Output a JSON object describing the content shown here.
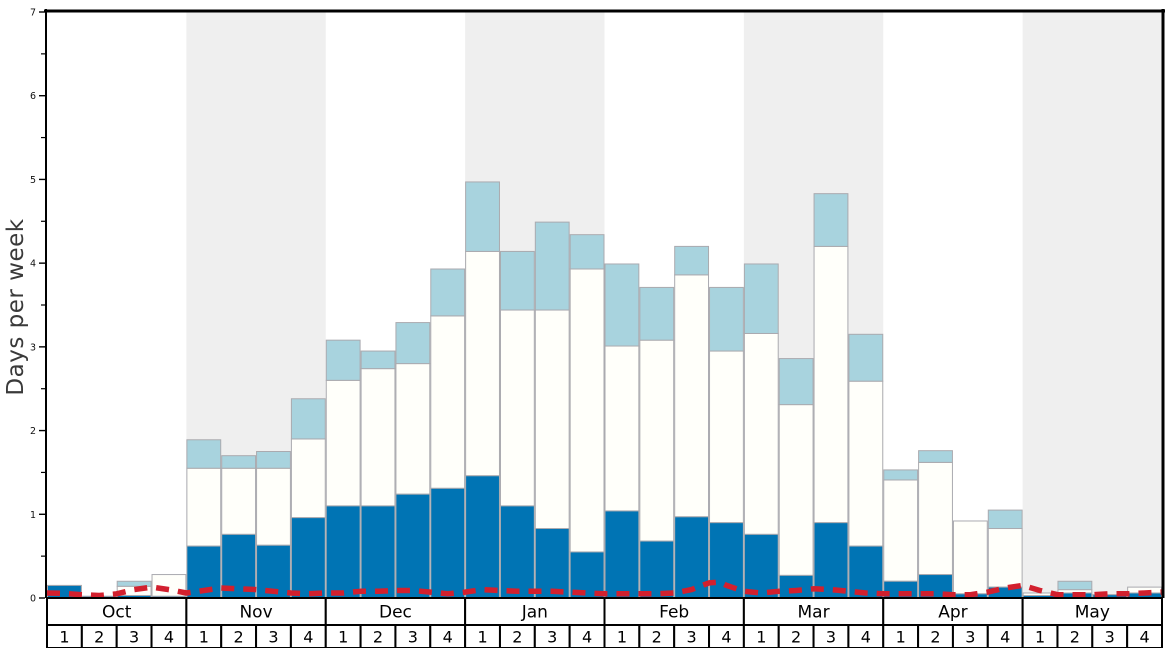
{
  "chart_data": {
    "type": "bar",
    "stacked": true,
    "title": "",
    "ylabel": "Days per week",
    "ylim": [
      0,
      7
    ],
    "yticks": [
      "0",
      "1",
      "2",
      "3",
      "4",
      "5",
      "6",
      "7"
    ],
    "minor_tick_step": 0.5,
    "grid": false,
    "legend": "none",
    "months": [
      "Oct",
      "Nov",
      "Dec",
      "Jan",
      "Feb",
      "Mar",
      "Apr",
      "May"
    ],
    "week_labels": [
      "1",
      "2",
      "3",
      "4"
    ],
    "shaded_month_indices": [
      1,
      3,
      5,
      7
    ],
    "categories": [
      "Oct-1",
      "Oct-2",
      "Oct-3",
      "Oct-4",
      "Nov-1",
      "Nov-2",
      "Nov-3",
      "Nov-4",
      "Dec-1",
      "Dec-2",
      "Dec-3",
      "Dec-4",
      "Jan-1",
      "Jan-2",
      "Jan-3",
      "Jan-4",
      "Feb-1",
      "Feb-2",
      "Feb-3",
      "Feb-4",
      "Mar-1",
      "Mar-2",
      "Mar-3",
      "Mar-4",
      "Apr-1",
      "Apr-2",
      "Apr-3",
      "Apr-4",
      "May-1",
      "May-2",
      "May-3",
      "May-4"
    ],
    "series": [
      {
        "name": "dark-blue-segment-top",
        "color": "#0074b4",
        "values": [
          0.15,
          0.02,
          0.03,
          0.02,
          0.62,
          0.76,
          0.63,
          0.96,
          1.1,
          1.1,
          1.24,
          1.31,
          1.46,
          1.1,
          0.83,
          0.55,
          1.04,
          0.68,
          0.97,
          0.9,
          0.76,
          0.27,
          0.9,
          0.62,
          0.2,
          0.28,
          0.05,
          0.13,
          0.03,
          0.06,
          0.04,
          0.06
        ]
      },
      {
        "name": "white-segment-top",
        "color": "#fffffa",
        "values": [
          0.15,
          0.02,
          0.14,
          0.28,
          1.55,
          1.55,
          1.55,
          1.9,
          2.6,
          2.74,
          2.8,
          3.37,
          4.14,
          3.44,
          3.44,
          3.93,
          3.01,
          3.08,
          3.86,
          2.95,
          3.16,
          2.31,
          4.2,
          2.59,
          1.41,
          1.62,
          0.92,
          0.83,
          0.06,
          0.1,
          0.04,
          0.13
        ]
      },
      {
        "name": "light-blue-segment-top",
        "color": "#a8d3de",
        "values": [
          0.15,
          0.02,
          0.2,
          0.28,
          1.89,
          1.7,
          1.75,
          2.38,
          3.08,
          2.95,
          3.29,
          3.93,
          4.97,
          4.14,
          4.49,
          4.34,
          3.99,
          3.71,
          4.2,
          3.71,
          3.99,
          2.86,
          4.83,
          3.15,
          1.53,
          1.76,
          0.92,
          1.05,
          0.06,
          0.2,
          0.04,
          0.13
        ]
      }
    ],
    "red_dashed_line": {
      "name": "red-dashed-line",
      "color": "#d2202e",
      "style": "dashed",
      "points_week_units": [
        [
          0,
          0.06
        ],
        [
          0.5,
          0.055
        ],
        [
          1,
          0.04
        ],
        [
          1.5,
          0.03
        ],
        [
          2,
          0.05
        ],
        [
          2.5,
          0.1
        ],
        [
          3,
          0.13
        ],
        [
          3.5,
          0.1
        ],
        [
          4,
          0.06
        ],
        [
          4.5,
          0.09
        ],
        [
          5,
          0.12
        ],
        [
          5.5,
          0.11
        ],
        [
          6,
          0.1
        ],
        [
          6.5,
          0.08
        ],
        [
          7,
          0.06
        ],
        [
          7.5,
          0.05
        ],
        [
          8,
          0.06
        ],
        [
          8.5,
          0.06
        ],
        [
          9,
          0.08
        ],
        [
          9.5,
          0.08
        ],
        [
          10,
          0.09
        ],
        [
          10.5,
          0.09
        ],
        [
          11,
          0.07
        ],
        [
          11.5,
          0.05
        ],
        [
          12,
          0.07
        ],
        [
          12.5,
          0.1
        ],
        [
          13,
          0.09
        ],
        [
          13.5,
          0.08
        ],
        [
          14,
          0.08
        ],
        [
          14.5,
          0.08
        ],
        [
          15,
          0.07
        ],
        [
          15.5,
          0.06
        ],
        [
          16,
          0.05
        ],
        [
          16.5,
          0.05
        ],
        [
          17,
          0.05
        ],
        [
          17.5,
          0.05
        ],
        [
          18,
          0.06
        ],
        [
          18.5,
          0.1
        ],
        [
          19,
          0.18
        ],
        [
          19.3,
          0.19
        ],
        [
          19.5,
          0.15
        ],
        [
          20,
          0.08
        ],
        [
          20.5,
          0.06
        ],
        [
          21,
          0.08
        ],
        [
          21.5,
          0.09
        ],
        [
          22,
          0.11
        ],
        [
          22.5,
          0.1
        ],
        [
          23,
          0.08
        ],
        [
          23.5,
          0.06
        ],
        [
          24,
          0.05
        ],
        [
          24.5,
          0.05
        ],
        [
          25,
          0.05
        ],
        [
          25.5,
          0.05
        ],
        [
          26,
          0.04
        ],
        [
          26.5,
          0.04
        ],
        [
          27,
          0.07
        ],
        [
          27.5,
          0.12
        ],
        [
          28,
          0.15
        ],
        [
          28.5,
          0.09
        ],
        [
          29,
          0.04
        ],
        [
          29.5,
          0.04
        ],
        [
          30,
          0.04
        ],
        [
          30.5,
          0.05
        ],
        [
          31,
          0.05
        ],
        [
          31.5,
          0.06
        ],
        [
          32,
          0.07
        ]
      ]
    },
    "colors": {
      "dark_bar": "#0074b4",
      "white_bar": "#fffffa",
      "light_bar": "#a8d3de",
      "bar_border": "#aaaaaf",
      "month_band_gray": "#efefef",
      "red_line": "#d2202e",
      "axis_border": "#000000",
      "axis_label_text": "#3a3a3a",
      "tick_text": "#111111"
    }
  }
}
